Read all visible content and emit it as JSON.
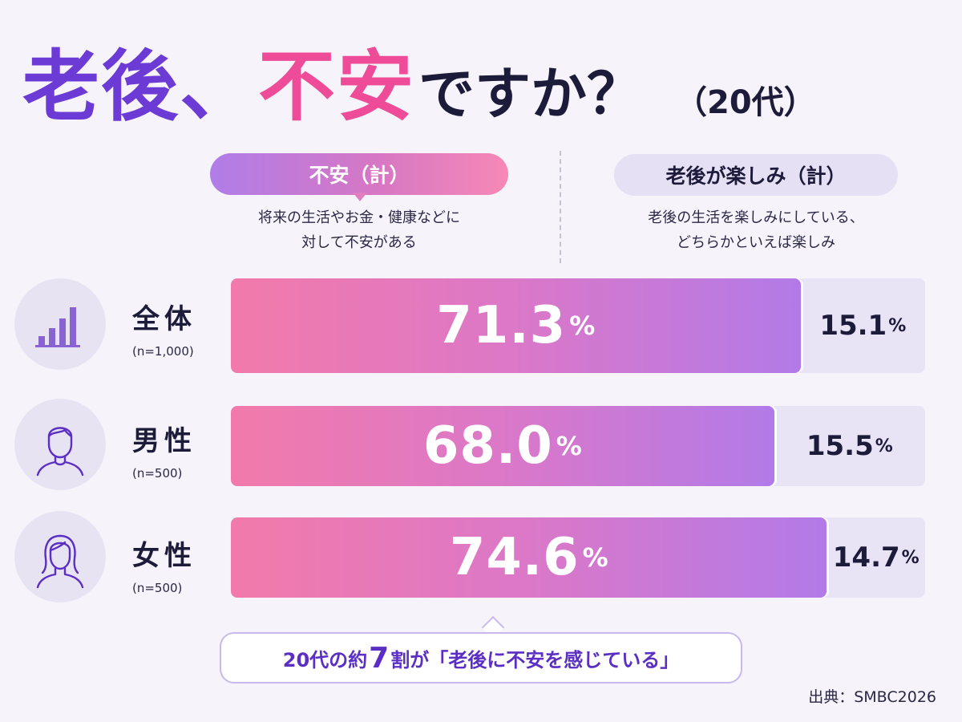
{
  "title": {
    "part1": "老後、",
    "part2": "不安",
    "part3": "ですか？",
    "part4": "（20代）"
  },
  "colors": {
    "title_purple": "#6c3bd6",
    "title_pink": "#ee4c98",
    "bar_gradient_start": "#f27aaa",
    "bar_gradient_end": "#b27ae8",
    "track": "#e8e3f5",
    "callout_text": "#5b2fc4"
  },
  "headers": {
    "left": {
      "label": "不安（計）",
      "desc_line1": "将来の生活やお金・健康などに",
      "desc_line2": "対して不安がある"
    },
    "right": {
      "label": "老後が楽しみ（計）",
      "desc_line1": "老後の生活を楽しみにしている、",
      "desc_line2": "どちらかといえば楽しみ"
    }
  },
  "rows": [
    {
      "label": "全体",
      "n": "(n=1,000)",
      "icon": "bar-chart-icon",
      "anxious": "71.3",
      "enjoy": "15.1",
      "pct": "%"
    },
    {
      "label": "男性",
      "n": "(n=500)",
      "icon": "man-icon",
      "anxious": "68.0",
      "enjoy": "15.5",
      "pct": "%"
    },
    {
      "label": "女性",
      "n": "(n=500)",
      "icon": "woman-icon",
      "anxious": "74.6",
      "enjoy": "14.7",
      "pct": "%"
    }
  ],
  "callout": {
    "before": "20代の約",
    "big": "7",
    "after": "割が「老後に不安を感じている」"
  },
  "source": "出典：SMBC2026",
  "chart_data": {
    "type": "bar",
    "orientation": "horizontal",
    "stacked": true,
    "categories": [
      "全体",
      "男性",
      "女性"
    ],
    "sample_sizes": [
      "(n=1,000)",
      "(n=500)",
      "(n=500)"
    ],
    "series": [
      {
        "name": "不安（計）",
        "values": [
          71.3,
          68.0,
          74.6
        ]
      },
      {
        "name": "老後が楽しみ（計）",
        "values": [
          15.1,
          15.5,
          14.7
        ]
      }
    ],
    "unit": "%",
    "xlim": [
      0,
      100
    ],
    "grid": false
  }
}
